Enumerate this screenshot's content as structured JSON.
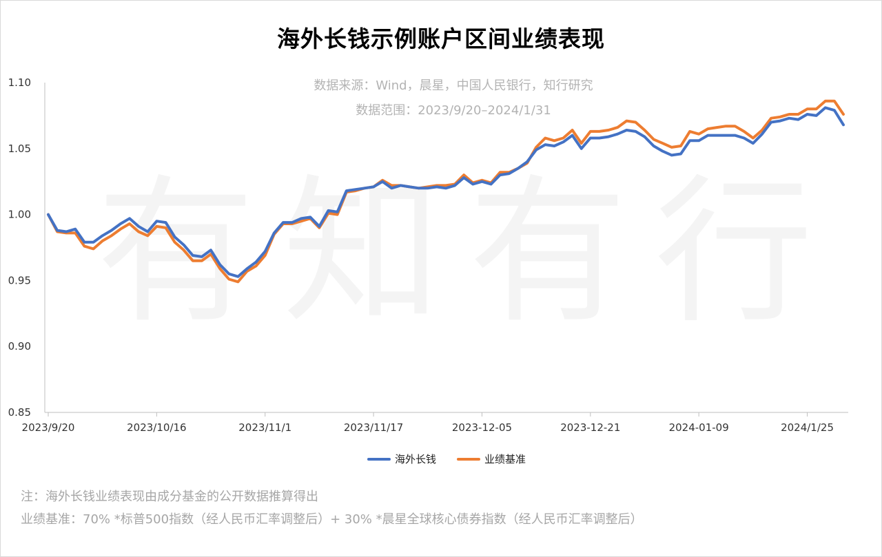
{
  "title": "海外长钱示例账户区间业绩表现",
  "source_text": "数据来源：Wind，晨星，中国人民银行，知行研究",
  "range_text": "数据范围：2023/9/20–2024/1/31",
  "watermark": "有知有行",
  "footnote_1": "注：海外长钱业绩表现由成分基金的公开数据推算得出",
  "footnote_2": "业绩基准：70% *标普500指数（经人民币汇率调整后）+ 30% *晨星全球核心债券指数（经人民币汇率调整后）",
  "colors": {
    "series_1": "#4472C4",
    "series_2": "#ED7D31",
    "axis": "#bfbfbf"
  },
  "chart_data": {
    "type": "line",
    "ylim": [
      0.85,
      1.1
    ],
    "yticks": [
      "0.85",
      "0.90",
      "0.95",
      "1.00",
      "1.05",
      "1.10"
    ],
    "x_tick_labels": [
      "2023/9/20",
      "2023/10/16",
      "2023/11/1",
      "2023/11/17",
      "2023-12-05",
      "2023-12-21",
      "2024-01-09",
      "2024/1/25"
    ],
    "x_tick_index": [
      0,
      12,
      24,
      36,
      48,
      60,
      72,
      84
    ],
    "grid": false,
    "legend_position": "bottom",
    "series": [
      {
        "name": "海外长钱",
        "values": [
          1.0,
          0.988,
          0.987,
          0.989,
          0.979,
          0.979,
          0.984,
          0.988,
          0.993,
          0.997,
          0.991,
          0.987,
          0.995,
          0.994,
          0.983,
          0.977,
          0.969,
          0.968,
          0.973,
          0.962,
          0.955,
          0.953,
          0.959,
          0.964,
          0.972,
          0.986,
          0.994,
          0.994,
          0.997,
          0.998,
          0.991,
          1.003,
          1.002,
          1.018,
          1.019,
          1.02,
          1.021,
          1.025,
          1.02,
          1.022,
          1.021,
          1.02,
          1.02,
          1.021,
          1.02,
          1.022,
          1.028,
          1.023,
          1.025,
          1.023,
          1.03,
          1.031,
          1.035,
          1.04,
          1.049,
          1.053,
          1.052,
          1.055,
          1.06,
          1.05,
          1.058,
          1.058,
          1.059,
          1.061,
          1.064,
          1.063,
          1.059,
          1.052,
          1.048,
          1.045,
          1.046,
          1.056,
          1.056,
          1.06,
          1.06,
          1.06,
          1.06,
          1.058,
          1.054,
          1.061,
          1.07,
          1.071,
          1.073,
          1.072,
          1.076,
          1.075,
          1.081,
          1.079,
          1.068
        ]
      },
      {
        "name": "业绩基准",
        "values": [
          1.0,
          0.987,
          0.986,
          0.986,
          0.976,
          0.974,
          0.98,
          0.984,
          0.989,
          0.993,
          0.987,
          0.984,
          0.991,
          0.99,
          0.979,
          0.973,
          0.965,
          0.965,
          0.97,
          0.959,
          0.951,
          0.949,
          0.957,
          0.961,
          0.969,
          0.985,
          0.993,
          0.993,
          0.995,
          0.997,
          0.99,
          1.001,
          1.0,
          1.017,
          1.018,
          1.02,
          1.021,
          1.026,
          1.022,
          1.022,
          1.021,
          1.02,
          1.021,
          1.022,
          1.022,
          1.023,
          1.03,
          1.024,
          1.026,
          1.024,
          1.032,
          1.032,
          1.035,
          1.039,
          1.051,
          1.058,
          1.056,
          1.058,
          1.064,
          1.054,
          1.063,
          1.063,
          1.064,
          1.066,
          1.071,
          1.07,
          1.064,
          1.057,
          1.054,
          1.051,
          1.052,
          1.063,
          1.061,
          1.065,
          1.066,
          1.067,
          1.067,
          1.063,
          1.058,
          1.064,
          1.073,
          1.074,
          1.076,
          1.076,
          1.08,
          1.08,
          1.086,
          1.086,
          1.076
        ]
      }
    ]
  }
}
